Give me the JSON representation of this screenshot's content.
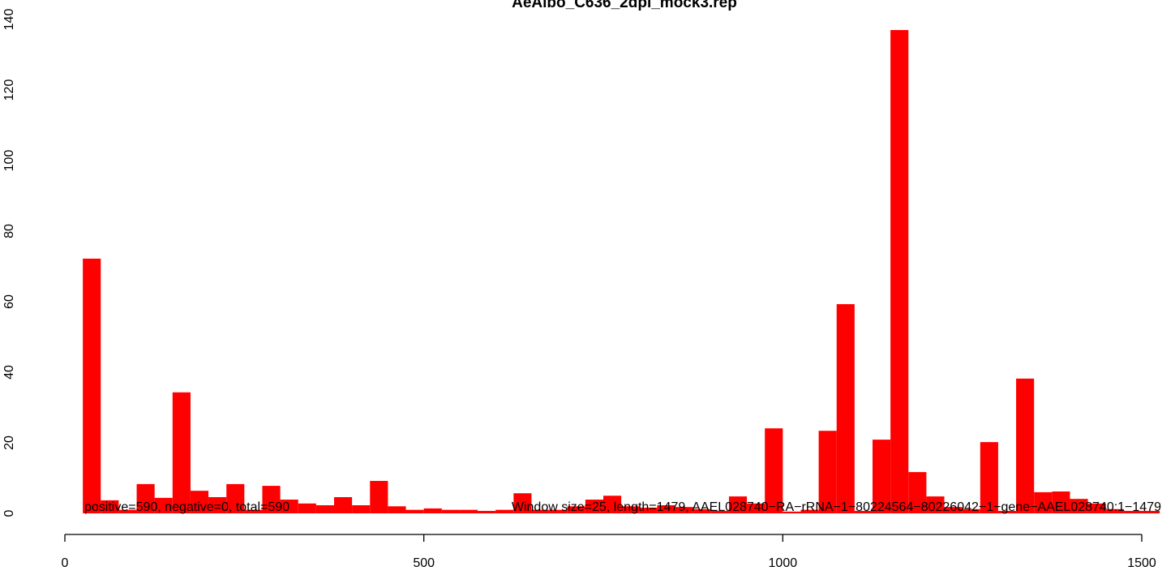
{
  "chart_data": {
    "type": "histogram",
    "title": "AeAlbo_C636_2dpi_mock3.rep",
    "annotations": [
      "positive=590, negative=0, total=590",
      "Window size=25, length=1479, AAEL028740−RA−rRNA−1−80224564−80226042−1−gene−AAEL028740:1−1479"
    ],
    "bins": [
      25,
      50,
      75,
      100,
      125,
      150,
      175,
      200,
      225,
      250,
      275,
      300,
      325,
      350,
      375,
      400,
      425,
      450,
      475,
      500,
      525,
      550,
      575,
      600,
      625,
      650,
      675,
      700,
      725,
      750,
      775,
      800,
      825,
      850,
      875,
      900,
      925,
      950,
      975,
      1000,
      1025,
      1050,
      1075,
      1100,
      1125,
      1150,
      1175,
      1200,
      1225,
      1250,
      1275,
      1300,
      1325,
      1350,
      1375,
      1400,
      1425,
      1450,
      1475,
      1500,
      1525
    ],
    "values": [
      72.2,
      3.7,
      1,
      8.3,
      4.4,
      34.3,
      6.4,
      4.6,
      8.3,
      1,
      7.8,
      3.9,
      2.8,
      2.3,
      4.6,
      2.3,
      9.2,
      2,
      1,
      1.4,
      1,
      1,
      0.7,
      1,
      5.7,
      1,
      1,
      2,
      3.9,
      5,
      2,
      1.6,
      2.3,
      1.8,
      1.2,
      0.7,
      4.8,
      2.8,
      24.1,
      0.5,
      1,
      23.4,
      59.3,
      0.7,
      20.9,
      137,
      11.7,
      4.8,
      1.8,
      1.2,
      20.2,
      0.7,
      38.2,
      6,
      6.2,
      4.1,
      2.8,
      1.2,
      0.7,
      0.7
    ],
    "color": "#ff0000",
    "xlim": [
      0,
      1530
    ],
    "xticks": [
      0,
      500,
      1000,
      1500
    ],
    "ylim": [
      0,
      140
    ],
    "yticks": [
      0,
      20,
      40,
      60,
      80,
      100,
      120,
      140
    ]
  }
}
